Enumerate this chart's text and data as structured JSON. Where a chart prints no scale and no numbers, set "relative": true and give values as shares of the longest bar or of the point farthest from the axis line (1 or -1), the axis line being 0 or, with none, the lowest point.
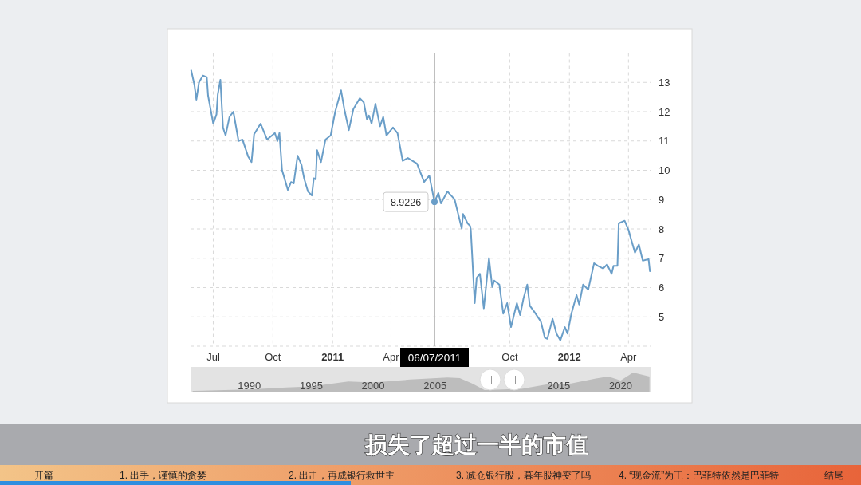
{
  "chart_data": [
    {
      "type": "line",
      "color": "#6a9ec8",
      "grid": true,
      "x": [
        "2010-05-28",
        "2010-06-02",
        "2010-06-05",
        "2010-06-09",
        "2010-06-15",
        "2010-06-21",
        "2010-06-23",
        "2010-07-01",
        "2010-07-06",
        "2010-07-08",
        "2010-07-12",
        "2010-07-16",
        "2010-07-20",
        "2010-07-26",
        "2010-08-01",
        "2010-08-09",
        "2010-08-15",
        "2010-08-24",
        "2010-08-29",
        "2010-09-02",
        "2010-09-12",
        "2010-09-22",
        "2010-10-04",
        "2010-10-08",
        "2010-10-11",
        "2010-10-15",
        "2010-10-24",
        "2010-10-29",
        "2010-11-02",
        "2010-11-08",
        "2010-11-14",
        "2010-11-18",
        "2010-11-24",
        "2010-11-30",
        "2010-12-03",
        "2010-12-06",
        "2010-12-08",
        "2010-12-14",
        "2010-12-21",
        "2010-12-29",
        "2011-01-05",
        "2011-01-14",
        "2011-01-19",
        "2011-01-26",
        "2011-02-02",
        "2011-02-12",
        "2011-02-18",
        "2011-02-23",
        "2011-02-26",
        "2011-03-02",
        "2011-03-08",
        "2011-03-15",
        "2011-03-20",
        "2011-03-25",
        "2011-04-04",
        "2011-04-11",
        "2011-04-19",
        "2011-04-27",
        "2011-05-11",
        "2011-05-22",
        "2011-05-30",
        "2011-06-03",
        "2011-06-07",
        "2011-06-13",
        "2011-06-17",
        "2011-06-27",
        "2011-06-29",
        "2011-07-08",
        "2011-07-19",
        "2011-07-21",
        "2011-07-28",
        "2011-08-01",
        "2011-08-02",
        "2011-08-08",
        "2011-08-11",
        "2011-08-16",
        "2011-08-22",
        "2011-08-30",
        "2011-09-04",
        "2011-09-07",
        "2011-09-15",
        "2011-09-21",
        "2011-09-27",
        "2011-10-03",
        "2011-10-12",
        "2011-10-17",
        "2011-10-22",
        "2011-10-28",
        "2011-11-01",
        "2011-11-07",
        "2011-11-18",
        "2011-11-24",
        "2011-11-28",
        "2011-12-06",
        "2011-12-12",
        "2011-12-18",
        "2011-12-25",
        "2011-12-29",
        "2012-01-04",
        "2012-01-12",
        "2012-01-16",
        "2012-01-22",
        "2012-01-30",
        "2012-02-08",
        "2012-02-14",
        "2012-02-22",
        "2012-02-28",
        "2012-03-06",
        "2012-03-09",
        "2012-03-15",
        "2012-03-17",
        "2012-03-26",
        "2012-04-01",
        "2012-04-05",
        "2012-04-11",
        "2012-04-17",
        "2012-04-23",
        "2012-05-02",
        "2012-05-04"
      ],
      "values": [
        13.41,
        12.91,
        12.41,
        13.0,
        13.23,
        13.18,
        12.55,
        11.59,
        11.91,
        12.59,
        13.09,
        11.46,
        11.19,
        11.82,
        12.0,
        11.0,
        11.05,
        10.46,
        10.28,
        11.23,
        11.59,
        11.05,
        11.27,
        11.0,
        11.27,
        10.01,
        9.33,
        9.6,
        9.55,
        10.5,
        10.19,
        9.73,
        9.28,
        9.14,
        9.73,
        9.69,
        10.69,
        10.28,
        11.05,
        11.19,
        12.0,
        12.73,
        12.09,
        11.37,
        12.09,
        12.46,
        12.32,
        11.73,
        11.87,
        11.59,
        12.27,
        11.5,
        11.82,
        11.19,
        11.46,
        11.27,
        10.32,
        10.42,
        10.23,
        9.6,
        9.82,
        9.37,
        8.92,
        9.23,
        8.87,
        9.28,
        9.23,
        9.01,
        8.01,
        8.51,
        8.19,
        8.1,
        7.96,
        5.47,
        6.33,
        6.47,
        5.29,
        7.01,
        6.02,
        6.24,
        6.1,
        5.11,
        5.47,
        4.65,
        5.47,
        5.06,
        5.61,
        6.1,
        5.38,
        5.2,
        4.84,
        4.29,
        4.25,
        4.93,
        4.43,
        4.2,
        4.65,
        4.43,
        5.11,
        5.74,
        5.42,
        6.1,
        5.93,
        6.83,
        6.74,
        6.65,
        6.79,
        6.47,
        6.74,
        6.74,
        8.19,
        8.28,
        7.97,
        7.65,
        7.19,
        7.47,
        6.92,
        6.97,
        6.56
      ],
      "xlim": [
        "2010-05-27",
        "2012-05-05"
      ],
      "xticks": [
        {
          "value": "2010-07-01",
          "label": "Jul"
        },
        {
          "value": "2010-10-01",
          "label": "Oct"
        },
        {
          "value": "2011-01-01",
          "label": "2011"
        },
        {
          "value": "2011-04-01",
          "label": "Apr"
        },
        {
          "value": "2011-07-01",
          "label": null
        },
        {
          "value": "2011-10-01",
          "label": "Oct"
        },
        {
          "value": "2012-01-01",
          "label": "2012"
        },
        {
          "value": "2012-04-01",
          "label": "Apr"
        }
      ],
      "ylim": [
        4,
        14
      ],
      "yticks": [
        5,
        6,
        7,
        8,
        9,
        10,
        11,
        12,
        13
      ],
      "ref_lines": [
        {
          "axis": "x",
          "value": "2011-06-07",
          "color": "#aaaaaa"
        }
      ],
      "annotations": [
        {
          "text": "8.9226",
          "x": "2011-06-07",
          "y": 8.9226
        },
        "06/07/2011",
        "损失了超过一半的市值",
        "开篇",
        "1. 出手，谨慎的贪婪",
        "2. 出击，再成银行救世主",
        "3. 减仓银行股，暮年股神变了吗",
        "4. “现金流”为王：巴菲特依然是巴菲特",
        "结尾"
      ]
    },
    {
      "type": "area",
      "relative": true,
      "color": "#bdbdbd",
      "x": [
        "1985-06",
        "1988",
        "1990",
        "1993",
        "1995",
        "1998",
        "2000",
        "2003",
        "2006",
        "2007",
        "2008",
        "2009",
        "2012",
        "2014",
        "2016",
        "2018",
        "2019",
        "2020",
        "2021",
        "2022-05"
      ],
      "values": [
        0.08,
        0.12,
        0.15,
        0.25,
        0.3,
        0.55,
        0.5,
        0.65,
        0.75,
        0.72,
        0.45,
        0.12,
        0.18,
        0.4,
        0.45,
        0.7,
        0.8,
        0.6,
        1.0,
        0.8
      ],
      "xlim": [
        "1985-04",
        "2022-06"
      ],
      "xticks": [
        {
          "value": "1990-01-01",
          "label": "1990"
        },
        {
          "value": "1995-01-01",
          "label": "1995"
        },
        {
          "value": "2000-01-01",
          "label": "2000"
        },
        {
          "value": "2005-01-01",
          "label": "2005"
        },
        {
          "value": "2015-01-01",
          "label": "2015"
        },
        {
          "value": "2020-01-01",
          "label": "2020"
        }
      ]
    }
  ]
}
